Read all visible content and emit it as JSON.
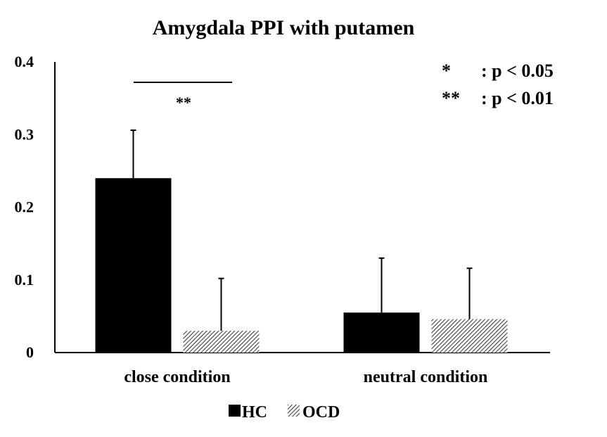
{
  "chart_data": {
    "type": "bar",
    "title": "Amygdala PPI with putamen",
    "xlabel": "",
    "ylabel": "",
    "ylim": [
      0,
      0.4
    ],
    "yticks": [
      "0",
      "0.1",
      "0.2",
      "0.3",
      "0.4"
    ],
    "yticks_values": [
      0,
      0.1,
      0.2,
      0.3,
      0.4
    ],
    "categories": [
      "close condition",
      "neutral condition"
    ],
    "series": [
      {
        "name": "HC",
        "values": [
          0.24,
          0.055
        ],
        "errors": [
          0.066,
          0.075
        ],
        "fill": "solid",
        "color": "#000000"
      },
      {
        "name": "OCD",
        "values": [
          0.03,
          0.046
        ],
        "errors": [
          0.072,
          0.07
        ],
        "fill": "hatched",
        "color": "#000000"
      }
    ],
    "significance": {
      "marker": "**"
    },
    "annotations": [
      {
        "symbol": "*",
        "text": ": p < 0.05"
      },
      {
        "symbol": "**",
        "text": ": p < 0.01"
      }
    ],
    "legend_position": "bottom-left",
    "grid": false
  }
}
